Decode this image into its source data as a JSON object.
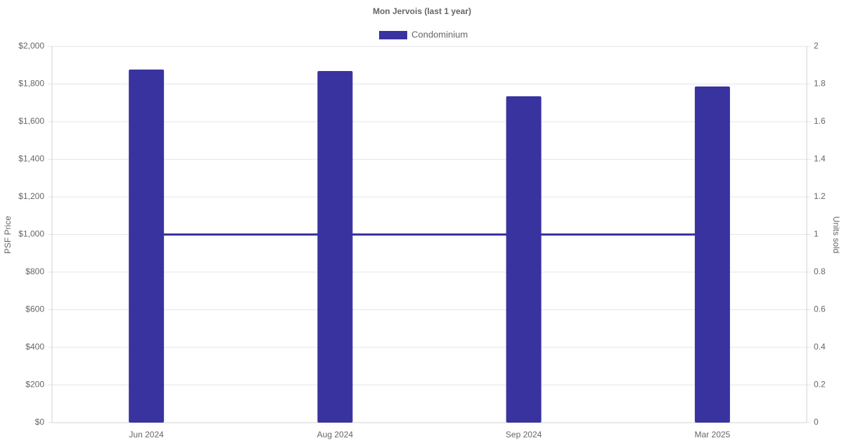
{
  "chart_data": {
    "type": "bar",
    "title": "Mon Jervois (last 1 year)",
    "categories": [
      "Jun 2024",
      "Aug 2024",
      "Sep 2024",
      "Mar 2025"
    ],
    "series": [
      {
        "name": "Condominium",
        "color": "#3933a0",
        "values": [
          1877,
          1869,
          1735,
          1787
        ]
      },
      {
        "type": "line",
        "axis": "y2",
        "color": "#3933a0",
        "values": [
          1,
          1,
          1,
          1
        ]
      }
    ],
    "y_label": "PSF Price",
    "y2_label": "Units sold",
    "ylim": [
      0,
      2000
    ],
    "yticks": [
      {
        "value": 0,
        "label": "$0"
      },
      {
        "value": 200,
        "label": "$200"
      },
      {
        "value": 400,
        "label": "$400"
      },
      {
        "value": 600,
        "label": "$600"
      },
      {
        "value": 800,
        "label": "$800"
      },
      {
        "value": 1000,
        "label": "$1,000"
      },
      {
        "value": 1200,
        "label": "$1,200"
      },
      {
        "value": 1400,
        "label": "$1,400"
      },
      {
        "value": 1600,
        "label": "$1,600"
      },
      {
        "value": 1800,
        "label": "$1,800"
      },
      {
        "value": 2000,
        "label": "$2,000"
      }
    ],
    "y2lim": [
      0,
      2
    ],
    "y2ticks": [
      0,
      0.2,
      0.4,
      0.6,
      0.8,
      1,
      1.2,
      1.4,
      1.6,
      1.8,
      2
    ],
    "grid": true
  }
}
